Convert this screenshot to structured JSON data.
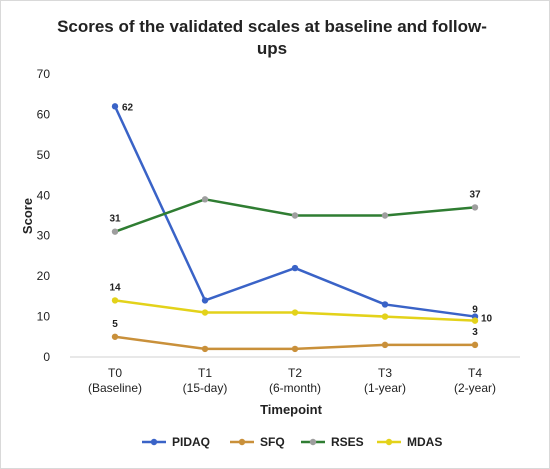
{
  "chart_data": {
    "type": "line",
    "title_line1": "Scores of the validated scales at baseline and follow-",
    "title_line2": "ups",
    "xlabel": "Timepoint",
    "ylabel": "Score",
    "ylim": [
      0,
      70
    ],
    "yticks": [
      "0",
      "10",
      "20",
      "30",
      "40",
      "50",
      "60",
      "70"
    ],
    "grid": false,
    "legend_position": "bottom",
    "categories": [
      {
        "line1": "T0",
        "line2": "(Baseline)"
      },
      {
        "line1": "T1",
        "line2": "(15-day)"
      },
      {
        "line1": "T2",
        "line2": "(6-month)"
      },
      {
        "line1": "T3",
        "line2": "(1-year)"
      },
      {
        "line1": "T4",
        "line2": "(2-year)"
      }
    ],
    "series": [
      {
        "name": "PIDAQ",
        "color": "#3a63c7",
        "marker_color": "#3a63c7",
        "values": [
          62,
          14,
          22,
          13,
          10
        ]
      },
      {
        "name": "SFQ",
        "color": "#c9903a",
        "marker_color": "#c9903a",
        "values": [
          5,
          2,
          2,
          3,
          3
        ]
      },
      {
        "name": "RSES",
        "color": "#2f7d32",
        "marker_color": "#9e9e9e",
        "values": [
          31,
          39,
          35,
          35,
          37
        ]
      },
      {
        "name": "MDAS",
        "color": "#e3d21a",
        "marker_color": "#e3d21a",
        "values": [
          14,
          11,
          11,
          10,
          9
        ]
      }
    ],
    "data_labels": [
      {
        "series": "PIDAQ",
        "index": 0,
        "text": "62"
      },
      {
        "series": "PIDAQ",
        "index": 4,
        "text": "10"
      },
      {
        "series": "RSES",
        "index": 0,
        "text": "31"
      },
      {
        "series": "RSES",
        "index": 4,
        "text": "37"
      },
      {
        "series": "MDAS",
        "index": 0,
        "text": "14"
      },
      {
        "series": "MDAS",
        "index": 4,
        "text": "9"
      },
      {
        "series": "SFQ",
        "index": 0,
        "text": "5"
      },
      {
        "series": "SFQ",
        "index": 4,
        "text": "3"
      }
    ]
  }
}
